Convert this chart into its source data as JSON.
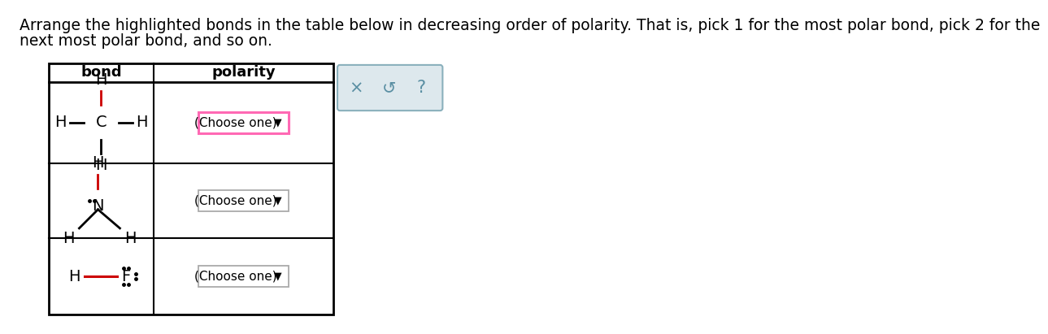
{
  "title_line1": "Arrange the highlighted bonds in the table below in decreasing order of polarity. That is, pick 1 for the most polar bond, pick 2 for the",
  "title_line2": "next most polar bond, and so on.",
  "title_fontsize": 13.5,
  "bg_color": "#ffffff",
  "text_color": "#000000",
  "bond_color": "#cc0000",
  "header_bond": "bond",
  "header_polarity": "polarity",
  "choose_one_text": "(Choose one)",
  "dropdown_arrow": "▼",
  "row1_border_color": "#ff69b4",
  "panel_bg": "#dde8ed",
  "panel_border": "#8ab0bc",
  "panel_symbols": [
    "×",
    "↺",
    "?"
  ],
  "panel_symbol_color": "#5a8fa3"
}
